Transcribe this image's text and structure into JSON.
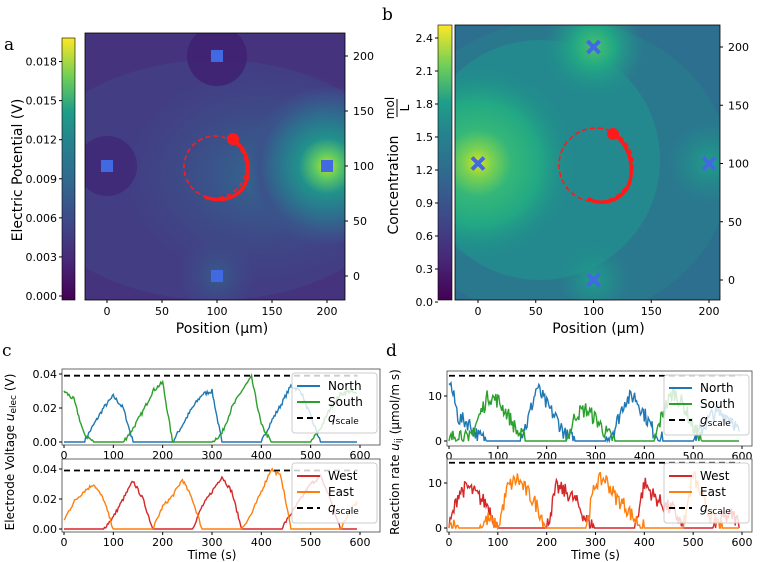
{
  "panels": {
    "a": "a",
    "b": "b",
    "c": "c",
    "d": "d"
  },
  "colors": {
    "north": "#1f77b4",
    "south": "#2ca02c",
    "west": "#d62728",
    "east": "#ff7f0e",
    "scale": "#000000",
    "marker": "#4169e1",
    "trajectory": "#ff1a1a"
  },
  "chart_data": [
    {
      "id": "a",
      "type": "heatmap",
      "title": "",
      "xlabel": "Position (μm)",
      "colorbar_label": "Electric Potential (V)",
      "colorbar_ticks": [
        "0.000",
        "0.003",
        "0.006",
        "0.009",
        "0.012",
        "0.015",
        "0.018"
      ],
      "colorbar_range": [
        0,
        0.0195
      ],
      "xticks": [
        "0",
        "50",
        "100",
        "150",
        "200"
      ],
      "yticks_right": [
        "0",
        "50",
        "100",
        "150",
        "200"
      ],
      "electrodes": [
        {
          "x": 0,
          "y": 100
        },
        {
          "x": 100,
          "y": 200
        },
        {
          "x": 200,
          "y": 100
        },
        {
          "x": 100,
          "y": 0
        }
      ],
      "hot_spot": {
        "x": 200,
        "y": 100
      },
      "marker": "square"
    },
    {
      "id": "b",
      "type": "heatmap",
      "xlabel": "Position (μm)",
      "colorbar_label": "Concentration",
      "colorbar_unit_num": "mol",
      "colorbar_unit_den": "L",
      "colorbar_ticks": [
        "0.0",
        "0.3",
        "0.6",
        "0.9",
        "1.2",
        "1.5",
        "1.8",
        "2.1",
        "2.4"
      ],
      "colorbar_range": [
        0,
        2.5
      ],
      "xticks": [
        "0",
        "50",
        "100",
        "150",
        "200"
      ],
      "yticks_right": [
        "0",
        "50",
        "100",
        "150",
        "200"
      ],
      "sources": [
        {
          "x": 0,
          "y": 100
        },
        {
          "x": 100,
          "y": 200
        },
        {
          "x": 200,
          "y": 100
        },
        {
          "x": 100,
          "y": 0
        }
      ],
      "hot_spot": {
        "x": 0,
        "y": 100
      },
      "marker": "x"
    },
    {
      "id": "c-top",
      "type": "line",
      "ylabel": "Electrode Voltage u_elec (V)",
      "ylabel_main": "Electrode Voltage ",
      "ylabel_var": "u",
      "ylabel_sub": "elec",
      "ylabel_unit": " (V)",
      "xticks": [
        "0",
        "100",
        "200",
        "300",
        "400",
        "500",
        "600"
      ],
      "yticks": [
        "0.00",
        "0.02",
        "0.04"
      ],
      "ylim": [
        0,
        0.04
      ],
      "xlim": [
        0,
        600
      ],
      "x": [
        0,
        20,
        40,
        60,
        80,
        100,
        120,
        140,
        160,
        180,
        200,
        220,
        240,
        260,
        280,
        300,
        320,
        340,
        360,
        380,
        400,
        420,
        440,
        460,
        480,
        500,
        520,
        540,
        560,
        580,
        600
      ],
      "series": [
        {
          "name": "North",
          "color": "#1f77b4",
          "values": [
            0,
            0,
            0,
            0.01,
            0.02,
            0.027,
            0.02,
            0,
            0,
            0,
            0,
            0,
            0.01,
            0.02,
            0.028,
            0.03,
            0,
            0,
            0,
            0,
            0,
            0.012,
            0.022,
            0.033,
            0.03,
            0.015,
            0,
            0,
            0,
            0,
            0
          ]
        },
        {
          "name": "South",
          "color": "#2ca02c",
          "values": [
            0.03,
            0.025,
            0.005,
            0,
            0,
            0,
            0,
            0.008,
            0.018,
            0.03,
            0.035,
            0,
            0,
            0,
            0,
            0,
            0.005,
            0.02,
            0.03,
            0.038,
            0.01,
            0,
            0,
            0,
            0,
            0,
            0.008,
            0.02,
            0.028,
            0.03,
            0.027
          ]
        }
      ],
      "scale_line": {
        "name": "q",
        "sub": "scale",
        "value": 0.039
      },
      "legend": "right"
    },
    {
      "id": "c-bottom",
      "type": "line",
      "xlabel": "Time (s)",
      "xticks": [
        "0",
        "100",
        "200",
        "300",
        "400",
        "500",
        "600"
      ],
      "yticks": [
        "0.00",
        "0.02",
        "0.04"
      ],
      "ylim": [
        0,
        0.04
      ],
      "xlim": [
        0,
        600
      ],
      "x": [
        0,
        20,
        40,
        60,
        80,
        100,
        120,
        140,
        160,
        180,
        200,
        220,
        240,
        260,
        280,
        300,
        320,
        340,
        360,
        380,
        400,
        420,
        440,
        460,
        480,
        500,
        520,
        540,
        560,
        580,
        600
      ],
      "series": [
        {
          "name": "West",
          "color": "#d62728",
          "values": [
            0,
            0,
            0,
            0,
            0,
            0.008,
            0.02,
            0.032,
            0.02,
            0,
            0,
            0,
            0,
            0,
            0.015,
            0.025,
            0.035,
            0.025,
            0,
            0,
            0,
            0,
            0,
            0.01,
            0.02,
            0.03,
            0.035,
            0.02,
            0,
            0,
            0
          ]
        },
        {
          "name": "East",
          "color": "#ff7f0e",
          "values": [
            0.006,
            0.018,
            0.025,
            0.03,
            0.02,
            0,
            0,
            0,
            0,
            0,
            0.015,
            0.022,
            0.033,
            0.02,
            0,
            0,
            0,
            0,
            0,
            0.01,
            0.025,
            0.04,
            0.035,
            0,
            0,
            0,
            0,
            0,
            0,
            0.012,
            0.02
          ]
        }
      ],
      "scale_line": {
        "name": "q",
        "sub": "scale",
        "value": 0.039
      },
      "legend": "right"
    },
    {
      "id": "d-top",
      "type": "line",
      "ylabel_main": "Reaction rate ",
      "ylabel_var": "u",
      "ylabel_sub": "ij",
      "ylabel_unit": " (μmol/m s)",
      "xticks": [
        "0",
        "100",
        "200",
        "300",
        "400",
        "500",
        "600"
      ],
      "yticks": [
        "0",
        "10"
      ],
      "ylim": [
        0,
        14.5
      ],
      "xlim": [
        0,
        600
      ],
      "x": [
        0,
        20,
        40,
        60,
        80,
        100,
        120,
        140,
        160,
        180,
        200,
        220,
        240,
        260,
        280,
        300,
        320,
        340,
        360,
        380,
        400,
        420,
        440,
        460,
        480,
        500,
        520,
        540,
        560,
        580,
        600
      ],
      "series": [
        {
          "name": "North",
          "color": "#1f77b4",
          "values": [
            14,
            5,
            4,
            1,
            0,
            0,
            0,
            0,
            4,
            12,
            8,
            5,
            1,
            0,
            0,
            0,
            0,
            3,
            9,
            10,
            6,
            2,
            0,
            0,
            0,
            0,
            3,
            6,
            6,
            5,
            0
          ]
        },
        {
          "name": "South",
          "color": "#2ca02c",
          "values": [
            0,
            2,
            0,
            5,
            10,
            9,
            6,
            2,
            0,
            0,
            0,
            0,
            0,
            6,
            7,
            5,
            2,
            0,
            0,
            0,
            0,
            0,
            7,
            11,
            8,
            3,
            0,
            0,
            0,
            0,
            0
          ]
        }
      ],
      "scale_line": {
        "name": "g",
        "sub": "scale",
        "value": 14.5
      },
      "legend": "right"
    },
    {
      "id": "d-bottom",
      "type": "line",
      "xlabel": "Time (s)",
      "xticks": [
        "0",
        "100",
        "200",
        "300",
        "400",
        "500",
        "600"
      ],
      "yticks": [
        "0",
        "10"
      ],
      "ylim": [
        0,
        14.5
      ],
      "xlim": [
        0,
        600
      ],
      "x": [
        0,
        20,
        40,
        60,
        80,
        100,
        120,
        140,
        160,
        180,
        200,
        220,
        240,
        260,
        280,
        300,
        320,
        340,
        360,
        380,
        400,
        420,
        440,
        460,
        480,
        500,
        520,
        540,
        560,
        580,
        600
      ],
      "series": [
        {
          "name": "West",
          "color": "#d62728",
          "values": [
            0,
            8,
            9,
            7,
            5,
            0,
            0,
            0,
            0,
            0,
            0,
            9,
            8,
            6,
            2,
            0,
            0,
            0,
            0,
            0,
            10,
            7,
            5,
            4,
            0,
            0,
            0,
            0,
            2,
            3,
            0
          ]
        },
        {
          "name": "East",
          "color": "#ff7f0e",
          "values": [
            1,
            0,
            0,
            0,
            2,
            0,
            9,
            11,
            8,
            5,
            0,
            0,
            0,
            0,
            0,
            10,
            11,
            7,
            5,
            2,
            0,
            0,
            0,
            0,
            0,
            12,
            6,
            2,
            0,
            0,
            0
          ]
        }
      ],
      "scale_line": {
        "name": "g",
        "sub": "scale",
        "value": 14.5
      },
      "legend": "right"
    }
  ]
}
